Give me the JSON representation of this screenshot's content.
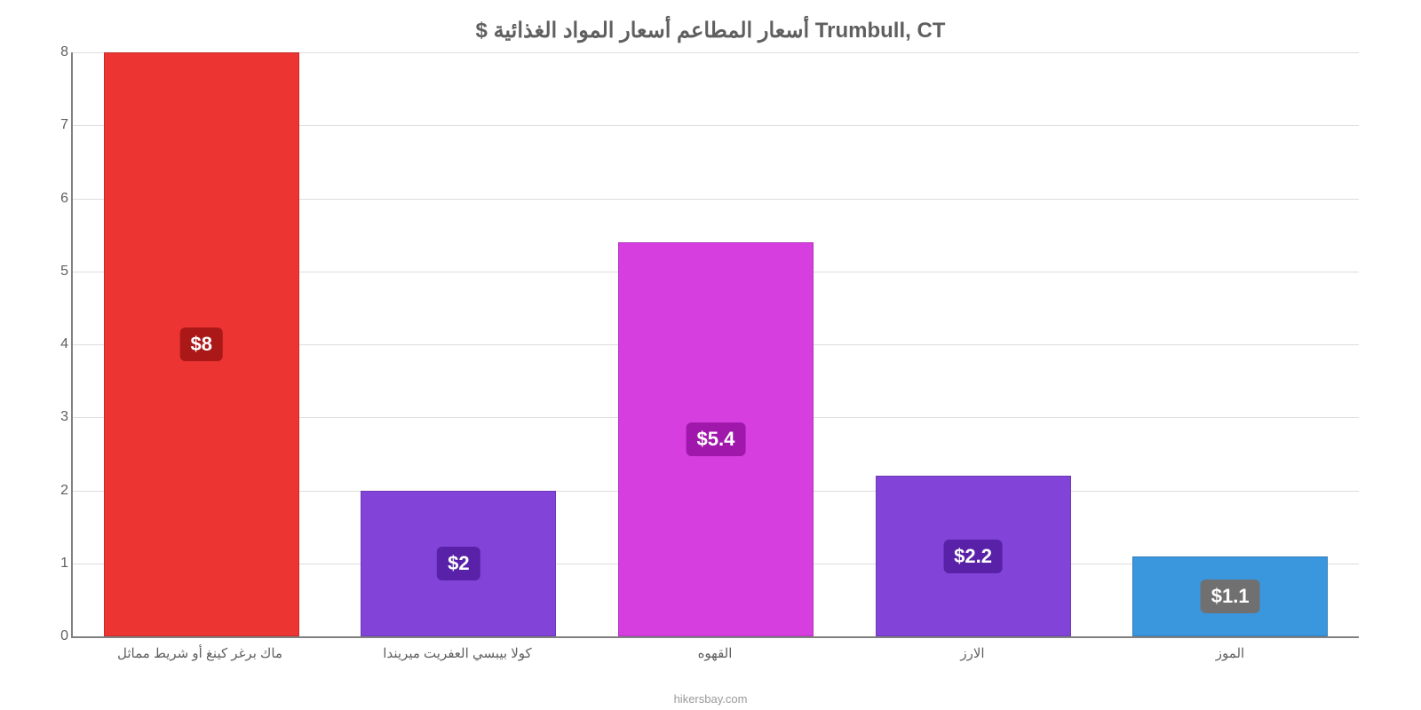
{
  "chart": {
    "type": "bar",
    "title": "$ أسعار المطاعم أسعار المواد الغذائية Trumbull, CT",
    "title_color": "#5f5f5f",
    "title_fontsize": 24,
    "background_color": "#ffffff",
    "axis_color": "#808080",
    "grid_color": "#dddddd",
    "label_color": "#5f5f5f",
    "ylim": [
      0,
      8
    ],
    "ytick_step": 1,
    "yticks": [
      "0",
      "1",
      "2",
      "3",
      "4",
      "5",
      "6",
      "7",
      "8"
    ],
    "xtick_fontsize": 15,
    "ytick_fontsize": 16,
    "bar_width_ratio": 0.76,
    "categories": [
      "ماك برغر كينغ أو شريط مماثل",
      "كولا بيبسي العفريت ميريندا",
      "القهوه",
      "الارز",
      "الموز"
    ],
    "values": [
      8,
      2,
      5.4,
      2.2,
      1.1
    ],
    "display_values": [
      "$8",
      "$2",
      "$5.4",
      "$2.2",
      "$1.1"
    ],
    "bar_colors": [
      "#ec3432",
      "#8244d8",
      "#d63ee0",
      "#8244d8",
      "#3a96dd"
    ],
    "badge_colors": [
      "#aa1817",
      "#5921a7",
      "#a017ab",
      "#5921a7",
      "#707070"
    ],
    "badge_text_color": "#ffffff",
    "badge_fontsize": 22,
    "attribution": "hikersbay.com",
    "attribution_color": "#999999"
  }
}
